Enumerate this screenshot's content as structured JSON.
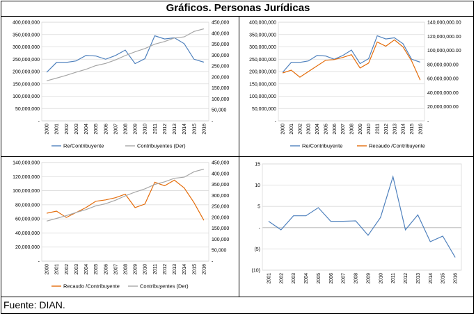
{
  "title": "Gráficos. Personas Jurídicas",
  "footer": "Fuente: DIAN.",
  "colors": {
    "blue": "#4f81bd",
    "gray": "#a6a6a6",
    "orange": "#e46c0a",
    "grid": "#d9d9d9",
    "axis": "#bfbfbf"
  },
  "chart_data": [
    {
      "type": "line",
      "x": [
        "2000",
        "2001",
        "2002",
        "2003",
        "2004",
        "2005",
        "2006",
        "2007",
        "2008",
        "2009",
        "2010",
        "2011",
        "2012",
        "2013",
        "2014",
        "2015",
        "2016"
      ],
      "left_axis": {
        "ylim": [
          0,
          400000000
        ],
        "ticks": [
          "-",
          "50,000,000",
          "100,000,000",
          "150,000,000",
          "200,000,000",
          "250,000,000",
          "300,000,000",
          "350,000,000",
          "400,000,000"
        ]
      },
      "right_axis": {
        "ylim": [
          0,
          450000
        ],
        "ticks": [
          "-",
          "50,000",
          "100,000",
          "150,000",
          "200,000",
          "250,000",
          "300,000",
          "350,000",
          "400,000",
          "450,000"
        ]
      },
      "series": [
        {
          "name": "Re/Contribuyente",
          "axis": "left",
          "color": "blue",
          "values": [
            197000000,
            237000000,
            237000000,
            243000000,
            265000000,
            263000000,
            250000000,
            265000000,
            287000000,
            232000000,
            252000000,
            345000000,
            332000000,
            337000000,
            313000000,
            250000000,
            238000000
          ]
        },
        {
          "name": "Contribuyentes (Der)",
          "axis": "right",
          "color": "gray",
          "values": [
            183000,
            195000,
            208000,
            222000,
            235000,
            252000,
            262000,
            278000,
            298000,
            315000,
            330000,
            350000,
            362000,
            378000,
            383000,
            408000,
            420000
          ]
        }
      ],
      "legend_position": "bottom"
    },
    {
      "type": "line",
      "x": [
        "2000",
        "2001",
        "2002",
        "2003",
        "2004",
        "2005",
        "2006",
        "2007",
        "2008",
        "2009",
        "2010",
        "2011",
        "2012",
        "2013",
        "2014",
        "2015",
        "2016"
      ],
      "left_axis": {
        "ylim": [
          0,
          400000000
        ],
        "ticks": [
          "-",
          "50,000,000",
          "100,000,000",
          "150,000,000",
          "200,000,000",
          "250,000,000",
          "300,000,000",
          "350,000,000",
          "400,000,000"
        ]
      },
      "right_axis": {
        "ylim": [
          0,
          140000000
        ],
        "ticks": [
          "-",
          "20,000,000.00",
          "40,000,000.00",
          "60,000,000.00",
          "80,000,000.00",
          "100,000,000.00",
          "120,000,000.00",
          "140,000,000.00"
        ]
      },
      "series": [
        {
          "name": "Re/Contribuyente",
          "axis": "left",
          "color": "blue",
          "values": [
            197000000,
            237000000,
            237000000,
            243000000,
            265000000,
            263000000,
            250000000,
            265000000,
            287000000,
            232000000,
            252000000,
            345000000,
            332000000,
            337000000,
            313000000,
            250000000,
            238000000
          ]
        },
        {
          "name": "Recaudo /Contribuyente",
          "axis": "right",
          "color": "orange",
          "values": [
            68000000,
            72000000,
            62000000,
            70000000,
            78000000,
            86000000,
            87000000,
            90000000,
            94000000,
            75000000,
            82000000,
            112000000,
            106000000,
            115000000,
            105000000,
            85000000,
            58000000
          ]
        }
      ],
      "legend_position": "bottom"
    },
    {
      "type": "line",
      "x": [
        "2000",
        "2001",
        "2002",
        "2003",
        "2004",
        "2005",
        "2006",
        "2007",
        "2008",
        "2009",
        "2010",
        "2011",
        "2012",
        "2013",
        "2014",
        "2015",
        "2016"
      ],
      "left_axis": {
        "ylim": [
          0,
          140000000
        ],
        "ticks": [
          "-",
          "20,000,000",
          "40,000,000",
          "60,000,000",
          "80,000,000",
          "100,000,000",
          "120,000,000",
          "140,000,000"
        ]
      },
      "right_axis": {
        "ylim": [
          0,
          450000
        ],
        "ticks": [
          "-",
          "50,000",
          "100,000",
          "150,000",
          "200,000",
          "250,000",
          "300,000",
          "350,000",
          "400,000",
          "450,000"
        ]
      },
      "series": [
        {
          "name": "Recaudo /Contribuyente",
          "axis": "left",
          "color": "orange",
          "values": [
            68000000,
            71000000,
            62000000,
            69000000,
            76000000,
            85000000,
            87000000,
            90000000,
            95000000,
            76000000,
            81000000,
            112000000,
            107000000,
            115000000,
            104000000,
            83000000,
            58000000
          ]
        },
        {
          "name": "Contribuyentes (Der)",
          "axis": "right",
          "color": "gray",
          "values": [
            183000,
            195000,
            208000,
            222000,
            235000,
            252000,
            262000,
            278000,
            298000,
            315000,
            330000,
            350000,
            362000,
            378000,
            383000,
            408000,
            420000
          ]
        }
      ],
      "legend_position": "bottom"
    },
    {
      "type": "line",
      "x": [
        "2001",
        "2002",
        "2003",
        "2004",
        "2005",
        "2006",
        "2007",
        "2008",
        "2009",
        "2010",
        "2011",
        "2012",
        "2013",
        "2014",
        "2015",
        "2016"
      ],
      "left_axis": {
        "ylim": [
          -10,
          15
        ],
        "ticks": [
          "(10)",
          "(5)",
          "-",
          "5",
          "10",
          "15"
        ]
      },
      "series": [
        {
          "axis": "left",
          "color": "blue",
          "values": [
            1.5,
            -0.5,
            2.8,
            2.8,
            4.7,
            1.5,
            1.5,
            1.6,
            -1.8,
            2.4,
            12,
            -0.5,
            3.0,
            -3.3,
            -2.0,
            -7.0
          ]
        }
      ],
      "legend_position": "none"
    }
  ]
}
